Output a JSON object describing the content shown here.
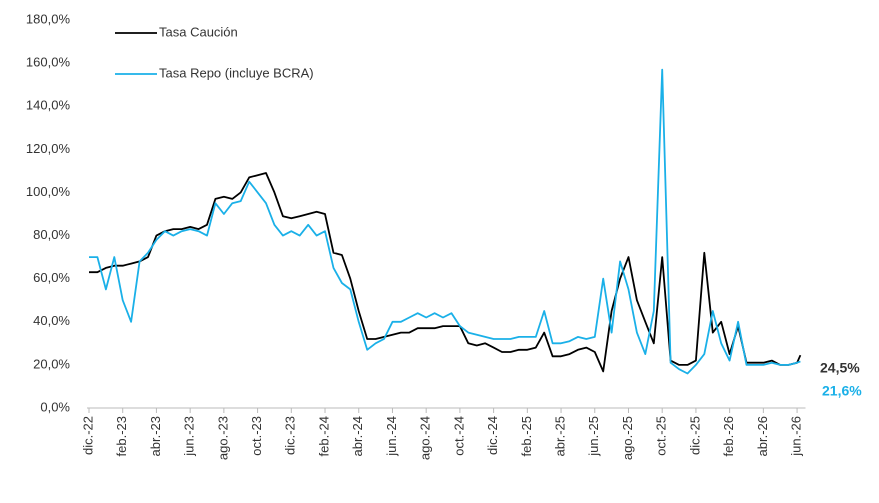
{
  "chart_data": {
    "type": "line",
    "x": [
      0,
      0.5,
      1,
      1.5,
      2,
      2.5,
      3,
      3.5,
      4,
      4.5,
      5,
      5.5,
      6,
      6.5,
      7,
      7.5,
      8,
      8.5,
      9,
      9.5,
      10,
      10.5,
      11,
      11.5,
      12,
      12.5,
      13,
      13.5,
      14,
      14.5,
      15,
      15.5,
      16,
      16.5,
      17,
      17.5,
      18,
      18.5,
      19,
      19.5,
      20,
      20.5,
      21,
      21.5,
      22,
      22.5,
      23,
      23.5,
      24,
      24.5,
      25,
      25.5,
      26,
      26.5,
      27,
      27.5,
      28,
      28.5,
      29,
      29.5,
      30,
      30.5,
      31,
      31.5,
      32,
      32.5,
      33,
      33.5,
      34,
      34.5,
      35,
      35.5,
      36,
      36.5,
      37,
      37.5,
      38,
      38.5,
      39,
      39.5,
      40,
      40.5,
      41,
      41.5,
      42,
      42.2
    ],
    "series": [
      {
        "name": "Tasa Caución",
        "color": "#000000",
        "last_label": "24,5%",
        "values": [
          63,
          63,
          65,
          66,
          66,
          67,
          68,
          70,
          80,
          82,
          83,
          83,
          84,
          83,
          85,
          97,
          98,
          97,
          100,
          107,
          108,
          109,
          100,
          89,
          88,
          89,
          90,
          91,
          90,
          72,
          71,
          60,
          45,
          32,
          32,
          33,
          34,
          35,
          35,
          37,
          37,
          37,
          38,
          38,
          38,
          30,
          29,
          30,
          28,
          26,
          26,
          27,
          27,
          28,
          35,
          24,
          24,
          25,
          27,
          28,
          26,
          17,
          45,
          60,
          70,
          50,
          40,
          30,
          70,
          22,
          20,
          20,
          22,
          72,
          35,
          40,
          25,
          38,
          21,
          21,
          21,
          22,
          20,
          20,
          21,
          24.5
        ]
      },
      {
        "name": "Tasa Repo (incluye BCRA)",
        "color": "#1ab0e8",
        "last_label": "21,6%",
        "values": [
          70,
          70,
          55,
          70,
          50,
          40,
          68,
          72,
          78,
          82,
          80,
          82,
          83,
          82,
          80,
          95,
          90,
          95,
          96,
          105,
          100,
          95,
          85,
          80,
          82,
          80,
          85,
          80,
          82,
          65,
          58,
          55,
          40,
          27,
          30,
          32,
          40,
          40,
          42,
          44,
          42,
          44,
          42,
          44,
          38,
          35,
          34,
          33,
          32,
          32,
          32,
          33,
          33,
          33,
          45,
          30,
          30,
          31,
          33,
          32,
          33,
          60,
          35,
          68,
          55,
          35,
          25,
          45,
          157,
          21,
          18,
          16,
          20,
          25,
          45,
          30,
          22,
          40,
          20,
          20,
          20,
          21,
          20,
          20,
          21,
          21.6
        ]
      }
    ],
    "xlim": [
      0,
      42.5
    ],
    "xticks": [
      {
        "value": 0,
        "label": "dic.-22"
      },
      {
        "value": 2,
        "label": "feb.-23"
      },
      {
        "value": 4,
        "label": "abr.-23"
      },
      {
        "value": 6,
        "label": "jun.-23"
      },
      {
        "value": 8,
        "label": "ago.-23"
      },
      {
        "value": 10,
        "label": "oct.-23"
      },
      {
        "value": 12,
        "label": "dic.-23"
      },
      {
        "value": 14,
        "label": "feb.-24"
      },
      {
        "value": 16,
        "label": "abr.-24"
      },
      {
        "value": 18,
        "label": "jun.-24"
      },
      {
        "value": 20,
        "label": "ago.-24"
      },
      {
        "value": 22,
        "label": "oct.-24"
      },
      {
        "value": 24,
        "label": "dic.-24"
      },
      {
        "value": 26,
        "label": "feb.-25"
      },
      {
        "value": 28,
        "label": "abr.-25"
      },
      {
        "value": 30,
        "label": "jun.-25"
      },
      {
        "value": 32,
        "label": "ago.-25"
      },
      {
        "value": 34,
        "label": "oct.-25"
      },
      {
        "value": 36,
        "label": "dic.-25"
      },
      {
        "value": 38,
        "label": "feb.-26"
      },
      {
        "value": 40,
        "label": "abr.-26"
      },
      {
        "value": 42,
        "label": "jun.-26"
      }
    ],
    "ylim": [
      0,
      180
    ],
    "yticks": [
      {
        "value": 0,
        "label": "0,0%"
      },
      {
        "value": 20,
        "label": "20,0%"
      },
      {
        "value": 40,
        "label": "40,0%"
      },
      {
        "value": 60,
        "label": "60,0%"
      },
      {
        "value": 80,
        "label": "80,0%"
      },
      {
        "value": 100,
        "label": "100,0%"
      },
      {
        "value": 120,
        "label": "120,0%"
      },
      {
        "value": 140,
        "label": "140,0%"
      },
      {
        "value": 160,
        "label": "160,0%"
      },
      {
        "value": 180,
        "label": "180,0%"
      }
    ],
    "grid": false
  }
}
